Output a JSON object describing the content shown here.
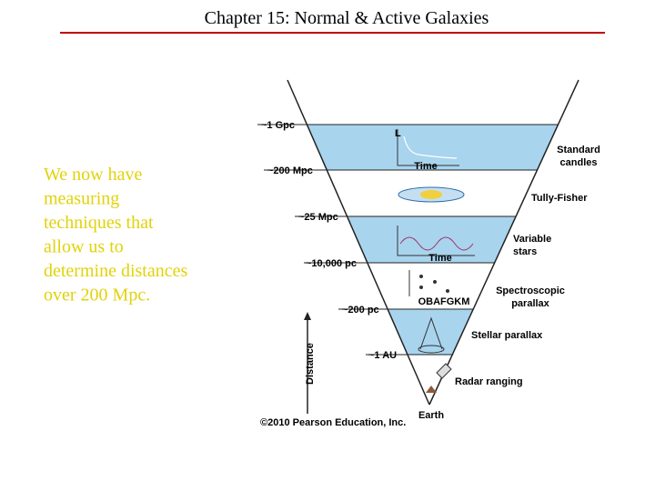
{
  "header": {
    "title": "Chapter 15: Normal & Active Galaxies"
  },
  "body": {
    "lines": [
      "We now have",
      "measuring",
      "techniques that",
      "allow us to",
      "determine distances",
      "over 200 Mpc."
    ]
  },
  "diagram": {
    "distances": [
      "~1 Gpc",
      "~200 Mpc",
      "~25 Mpc",
      "~10,000 pc",
      "~200 pc",
      "~1 AU"
    ],
    "methods": [
      [
        "Standard",
        "candles"
      ],
      [
        "Tully-Fisher"
      ],
      [
        "Variable",
        "stars"
      ],
      [
        "Spectroscopic",
        "parallax"
      ],
      [
        "Stellar parallax"
      ],
      [
        "Radar ranging"
      ]
    ],
    "axis_label": "Distance",
    "bottom_label": "Earth",
    "luminosity_axis": "L",
    "time_axis_1": "Time",
    "time_axis_2": "Time",
    "spectral_classes": "OBAFGKM",
    "copyright": "©2010 Pearson Education, Inc."
  }
}
